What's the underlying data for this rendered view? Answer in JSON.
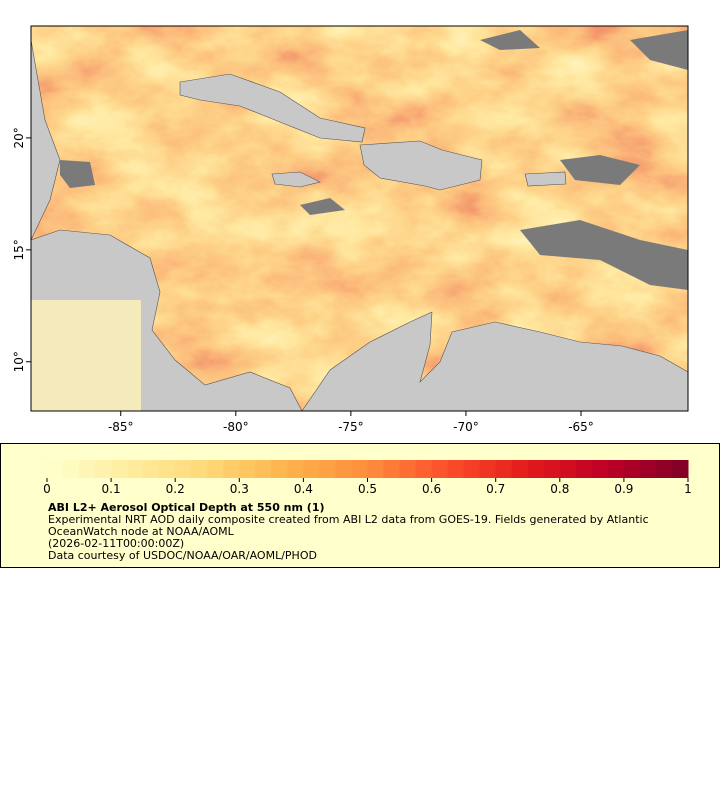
{
  "map": {
    "xlim": [
      -88.9,
      -60.35
    ],
    "ylim": [
      7.8,
      25
    ],
    "xticks": [
      {
        "value": -85,
        "label": "-85°"
      },
      {
        "value": -80,
        "label": "-80°"
      },
      {
        "value": -75,
        "label": "-75°"
      },
      {
        "value": -70,
        "label": "-70°"
      },
      {
        "value": -65,
        "label": "-65°"
      }
    ],
    "yticks": [
      {
        "value": 10,
        "label": "10°"
      },
      {
        "value": 15,
        "label": "15°"
      },
      {
        "value": 20,
        "label": "20°"
      }
    ]
  },
  "legend": {
    "colorbar": {
      "lim": [
        0,
        1
      ],
      "ticks": [
        0,
        0.1,
        0.2,
        0.3,
        0.4,
        0.5,
        0.6,
        0.7,
        0.8,
        0.9,
        1
      ],
      "colors": [
        "#ffffcc",
        "#ffeda0",
        "#fed976",
        "#feb24c",
        "#fd8d3c",
        "#fc4e2a",
        "#e31a1c",
        "#bd0026",
        "#800026"
      ]
    },
    "title": "ABI L2+ Aerosol Optical Depth at 550 nm (1)",
    "lines": [
      "Experimental NRT AOD daily composite created from ABI L2 data from GOES-19. Fields generated by Atlantic",
      "OceanWatch node at NOAA/AOML",
      "(2026-02-11T00:00:00Z)",
      "Data courtesy of USDOC/NOAA/OAR/AOML/PHOD"
    ]
  }
}
